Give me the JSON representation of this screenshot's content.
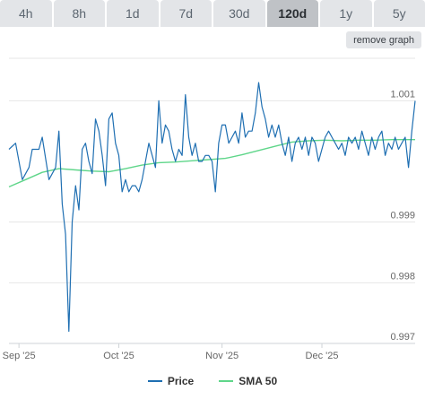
{
  "tabs": [
    {
      "label": "4h",
      "active": false
    },
    {
      "label": "8h",
      "active": false
    },
    {
      "label": "1d",
      "active": false
    },
    {
      "label": "7d",
      "active": false
    },
    {
      "label": "30d",
      "active": false
    },
    {
      "label": "120d",
      "active": true
    },
    {
      "label": "1y",
      "active": false
    },
    {
      "label": "5y",
      "active": false
    }
  ],
  "remove_graph_label": "remove graph",
  "colors": {
    "price": "#1f6fb2",
    "sma": "#5fd68a",
    "grid": "#e6e6e6",
    "axis_text": "#666666"
  },
  "chart_data": {
    "type": "line",
    "title": "",
    "xlabel": "",
    "ylabel": "",
    "x_range": [
      "2025-08-29",
      "2025-12-29"
    ],
    "ylim": [
      0.997,
      1.0017
    ],
    "y_ticks": [
      0.997,
      0.998,
      0.999,
      1.001
    ],
    "y_tick_labels": [
      "0.997",
      "0.998",
      "0.999",
      "1.001"
    ],
    "x_ticks": [
      "2025-09-01",
      "2025-10-01",
      "2025-11-01",
      "2025-12-01"
    ],
    "x_tick_labels": [
      "Sep '25",
      "Oct '25",
      "Nov '25",
      "Dec '25"
    ],
    "grid": true,
    "legend_position": "bottom",
    "series": [
      {
        "name": "Price",
        "color": "#1f6fb2",
        "x": [
          "2025-08-29",
          "2025-08-31",
          "2025-09-02",
          "2025-09-04",
          "2025-09-05",
          "2025-09-07",
          "2025-09-08",
          "2025-09-10",
          "2025-09-12",
          "2025-09-13",
          "2025-09-14",
          "2025-09-15",
          "2025-09-16",
          "2025-09-17",
          "2025-09-18",
          "2025-09-19",
          "2025-09-20",
          "2025-09-21",
          "2025-09-22",
          "2025-09-23",
          "2025-09-24",
          "2025-09-25",
          "2025-09-26",
          "2025-09-27",
          "2025-09-28",
          "2025-09-29",
          "2025-09-30",
          "2025-10-01",
          "2025-10-02",
          "2025-10-03",
          "2025-10-04",
          "2025-10-05",
          "2025-10-06",
          "2025-10-07",
          "2025-10-08",
          "2025-10-10",
          "2025-10-12",
          "2025-10-13",
          "2025-10-14",
          "2025-10-15",
          "2025-10-16",
          "2025-10-17",
          "2025-10-18",
          "2025-10-19",
          "2025-10-20",
          "2025-10-21",
          "2025-10-22",
          "2025-10-23",
          "2025-10-24",
          "2025-10-25",
          "2025-10-26",
          "2025-10-27",
          "2025-10-28",
          "2025-10-29",
          "2025-10-30",
          "2025-10-31",
          "2025-11-01",
          "2025-11-02",
          "2025-11-03",
          "2025-11-04",
          "2025-11-05",
          "2025-11-06",
          "2025-11-07",
          "2025-11-08",
          "2025-11-09",
          "2025-11-10",
          "2025-11-11",
          "2025-11-12",
          "2025-11-13",
          "2025-11-14",
          "2025-11-15",
          "2025-11-16",
          "2025-11-17",
          "2025-11-18",
          "2025-11-19",
          "2025-11-20",
          "2025-11-21",
          "2025-11-22",
          "2025-11-23",
          "2025-11-24",
          "2025-11-25",
          "2025-11-26",
          "2025-11-27",
          "2025-11-28",
          "2025-11-29",
          "2025-11-30",
          "2025-12-01",
          "2025-12-02",
          "2025-12-03",
          "2025-12-04",
          "2025-12-05",
          "2025-12-06",
          "2025-12-07",
          "2025-12-08",
          "2025-12-09",
          "2025-12-10",
          "2025-12-11",
          "2025-12-12",
          "2025-12-13",
          "2025-12-14",
          "2025-12-15",
          "2025-12-16",
          "2025-12-17",
          "2025-12-18",
          "2025-12-19",
          "2025-12-20",
          "2025-12-21",
          "2025-12-22",
          "2025-12-23",
          "2025-12-24",
          "2025-12-25",
          "2025-12-26",
          "2025-12-27",
          "2025-12-28",
          "2025-12-29"
        ],
        "y": [
          1.0002,
          1.0003,
          0.9997,
          0.9999,
          1.0002,
          1.0002,
          1.0004,
          0.9997,
          0.9999,
          1.0005,
          0.9993,
          0.9988,
          0.9972,
          0.999,
          0.9996,
          0.9992,
          1.0002,
          1.0003,
          1.0,
          0.9998,
          1.0007,
          1.0005,
          1.0001,
          0.9996,
          1.0007,
          1.0008,
          1.0003,
          1.0001,
          0.9995,
          0.9997,
          0.9995,
          0.9996,
          0.9996,
          0.9995,
          0.9997,
          1.0003,
          0.9999,
          1.001,
          1.0003,
          1.0006,
          1.0005,
          1.0002,
          1.0,
          1.0002,
          1.0001,
          1.0011,
          1.0004,
          1.0001,
          1.0003,
          1.0,
          1.0,
          1.0001,
          1.0001,
          1.0,
          0.9995,
          1.0003,
          1.0006,
          1.0006,
          1.0003,
          1.0004,
          1.0005,
          1.0003,
          1.0008,
          1.0004,
          1.0005,
          1.0005,
          1.0008,
          1.0013,
          1.0009,
          1.0007,
          1.0004,
          1.0006,
          1.0004,
          1.0006,
          1.0003,
          1.0001,
          1.0004,
          1.0,
          1.0003,
          1.0004,
          1.0002,
          1.0004,
          1.0001,
          1.0004,
          1.0003,
          1.0,
          1.0002,
          1.0004,
          1.0005,
          1.0004,
          1.0003,
          1.0002,
          1.0003,
          1.0001,
          1.0004,
          1.0003,
          1.0004,
          1.0002,
          1.0005,
          1.0003,
          1.0001,
          1.0004,
          1.0002,
          1.0004,
          1.0005,
          1.0001,
          1.0003,
          1.0002,
          1.0004,
          1.0002,
          1.0003,
          1.0004,
          0.9999,
          1.0005,
          1.001
        ]
      },
      {
        "name": "SMA 50",
        "color": "#5fd68a",
        "x": [
          "2025-08-29",
          "2025-09-03",
          "2025-09-08",
          "2025-09-13",
          "2025-09-18",
          "2025-09-23",
          "2025-09-28",
          "2025-10-03",
          "2025-10-08",
          "2025-10-13",
          "2025-10-18",
          "2025-10-23",
          "2025-10-28",
          "2025-11-02",
          "2025-11-07",
          "2025-11-12",
          "2025-11-17",
          "2025-11-22",
          "2025-11-27",
          "2025-12-02",
          "2025-12-07",
          "2025-12-12",
          "2025-12-17",
          "2025-12-22",
          "2025-12-27",
          "2025-12-29"
        ],
        "y": [
          0.99958,
          0.9997,
          0.99982,
          0.99988,
          0.99986,
          0.99984,
          0.99983,
          0.99988,
          0.99994,
          0.99998,
          0.99999,
          1.00001,
          1.00003,
          1.00005,
          1.00011,
          1.00018,
          1.00025,
          1.00032,
          1.00034,
          1.00035,
          1.00034,
          1.00035,
          1.00035,
          1.00036,
          1.00036,
          1.00036
        ]
      }
    ]
  }
}
